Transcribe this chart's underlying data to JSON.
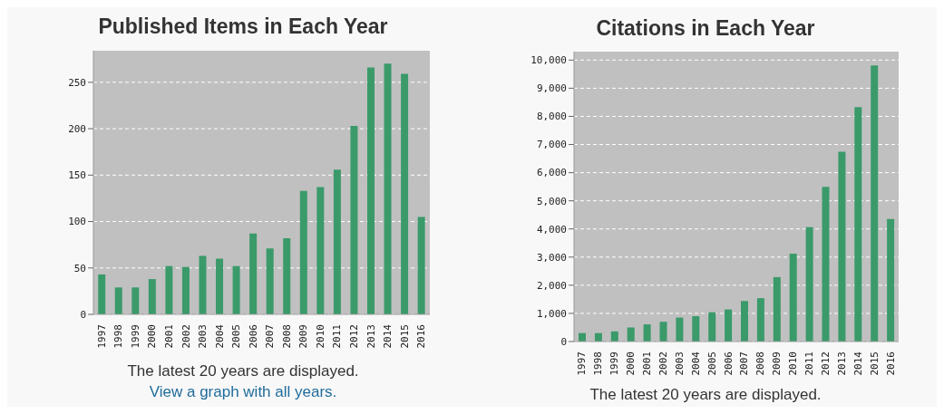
{
  "chart_data": [
    {
      "type": "bar",
      "title": "Published Items in Each Year",
      "categories": [
        "1997",
        "1998",
        "1999",
        "2000",
        "2001",
        "2002",
        "2003",
        "2004",
        "2005",
        "2006",
        "2007",
        "2008",
        "2009",
        "2010",
        "2011",
        "2012",
        "2013",
        "2014",
        "2015",
        "2016"
      ],
      "values": [
        43,
        29,
        29,
        38,
        52,
        51,
        63,
        60,
        52,
        87,
        71,
        82,
        133,
        137,
        156,
        203,
        266,
        270,
        259,
        105
      ],
      "color": "#3a9a6a",
      "ylim": [
        0,
        284
      ],
      "yticks": [
        0,
        50,
        100,
        150,
        200,
        250
      ],
      "grid": "y",
      "legend": false,
      "annotations": [
        "The latest 20 years are displayed.",
        "View a graph with all years."
      ]
    },
    {
      "type": "bar",
      "title": "Citations in Each Year",
      "categories": [
        "1997",
        "1998",
        "1999",
        "2000",
        "2001",
        "2002",
        "2003",
        "2004",
        "2005",
        "2006",
        "2007",
        "2008",
        "2009",
        "2010",
        "2011",
        "2012",
        "2013",
        "2014",
        "2015",
        "2016"
      ],
      "values": [
        300,
        300,
        360,
        500,
        610,
        700,
        850,
        900,
        1040,
        1140,
        1440,
        1540,
        2290,
        3120,
        4060,
        5500,
        6740,
        8330,
        9810,
        4350
      ],
      "color": "#3a9a6a",
      "ylim": [
        0,
        10300
      ],
      "yticks": [
        0,
        {
          "value": 1000,
          "label": "1,000"
        },
        {
          "value": 2000,
          "label": "2,000"
        },
        {
          "value": 3000,
          "label": "3,000"
        },
        {
          "value": 4000,
          "label": "4,000"
        },
        {
          "value": 5000,
          "label": "5,000"
        },
        {
          "value": 6000,
          "label": "6,000"
        },
        {
          "value": 7000,
          "label": "7,000"
        },
        {
          "value": 8000,
          "label": "8,000"
        },
        {
          "value": 9000,
          "label": "9,000"
        },
        {
          "value": 10000,
          "label": "10,000"
        }
      ],
      "grid": "y",
      "legend": false,
      "annotations": [
        "The latest 20 years are displayed."
      ]
    }
  ]
}
